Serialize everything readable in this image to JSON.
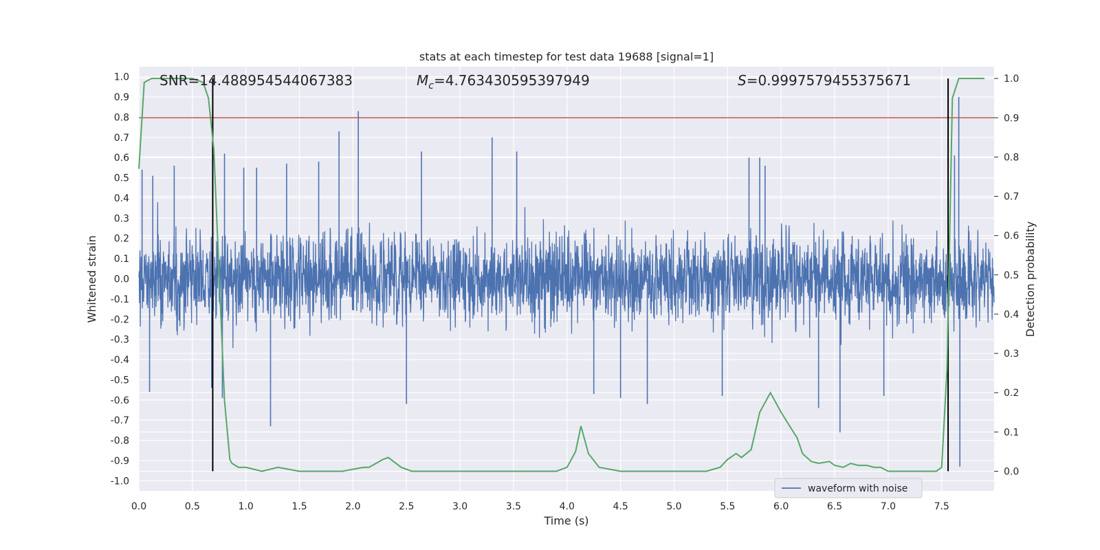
{
  "chart_data": {
    "type": "line",
    "title": "stats at each timestep for test data 19688 [signal=1]",
    "xlabel": "Time (s)",
    "ylabel": "Whitened strain",
    "y2label": "Detection probability",
    "xlim": [
      0.0,
      7.99
    ],
    "ylim": [
      -1.05,
      1.05
    ],
    "y2lim": [
      -0.05,
      1.03
    ],
    "xticks": [
      "0.0",
      "0.5",
      "1.0",
      "1.5",
      "2.0",
      "2.5",
      "3.0",
      "3.5",
      "4.0",
      "4.5",
      "5.0",
      "5.5",
      "6.0",
      "6.5",
      "7.0",
      "7.5"
    ],
    "yticks": [
      "1.0",
      "0.9",
      "0.8",
      "0.7",
      "0.6",
      "0.5",
      "0.4",
      "0.3",
      "0.2",
      "0.1",
      "0.0",
      "-0.1",
      "-0.2",
      "-0.3",
      "-0.4",
      "-0.5",
      "-0.6",
      "-0.7",
      "-0.8",
      "-0.9",
      "-1.0"
    ],
    "y2ticks": [
      "1.0",
      "0.9",
      "0.8",
      "0.7",
      "0.6",
      "0.5",
      "0.4",
      "0.3",
      "0.2",
      "0.1",
      "0.0"
    ],
    "grid": true,
    "legend_position": "lower-right",
    "annotations": {
      "snr": "SNR=14.488954544067383",
      "mc_symbol": "M",
      "mc_sub": "c",
      "mc_value": "=4.763430595397949",
      "s_symbol": "S",
      "s_value": "=0.9997579455375671"
    },
    "series": [
      {
        "name": "waveform with noise",
        "axis": "left",
        "color": "#4c72b0",
        "style": "dense-noise",
        "envelope": 0.4,
        "spikes": [
          {
            "x": 0.03,
            "y": 0.54
          },
          {
            "x": 0.1,
            "y": -0.56
          },
          {
            "x": 0.13,
            "y": 0.51
          },
          {
            "x": 0.33,
            "y": 0.56
          },
          {
            "x": 0.68,
            "y": -0.54
          },
          {
            "x": 0.78,
            "y": -0.59
          },
          {
            "x": 0.8,
            "y": 0.62
          },
          {
            "x": 0.98,
            "y": 0.55
          },
          {
            "x": 1.1,
            "y": 0.55
          },
          {
            "x": 1.23,
            "y": -0.73
          },
          {
            "x": 1.38,
            "y": 0.57
          },
          {
            "x": 1.68,
            "y": 0.58
          },
          {
            "x": 1.87,
            "y": 0.73
          },
          {
            "x": 2.05,
            "y": 0.83
          },
          {
            "x": 2.5,
            "y": -0.62
          },
          {
            "x": 2.64,
            "y": 0.63
          },
          {
            "x": 3.3,
            "y": 0.7
          },
          {
            "x": 3.53,
            "y": 0.63
          },
          {
            "x": 4.25,
            "y": -0.57
          },
          {
            "x": 4.5,
            "y": -0.59
          },
          {
            "x": 4.75,
            "y": -0.62
          },
          {
            "x": 5.45,
            "y": -0.58
          },
          {
            "x": 5.7,
            "y": 0.6
          },
          {
            "x": 5.85,
            "y": 0.56
          },
          {
            "x": 5.8,
            "y": 0.6
          },
          {
            "x": 6.35,
            "y": -0.64
          },
          {
            "x": 6.55,
            "y": -0.76
          },
          {
            "x": 6.96,
            "y": -0.58
          },
          {
            "x": 7.62,
            "y": 0.61
          },
          {
            "x": 7.66,
            "y": 0.9
          },
          {
            "x": 7.67,
            "y": -0.93
          }
        ]
      },
      {
        "name": "Detection probability",
        "axis": "right",
        "color": "#55a868",
        "x": [
          0.0,
          0.05,
          0.12,
          0.25,
          0.5,
          0.6,
          0.65,
          0.7,
          0.75,
          0.8,
          0.85,
          0.87,
          0.93,
          1.0,
          1.15,
          1.3,
          1.5,
          1.7,
          1.9,
          2.1,
          2.15,
          2.28,
          2.33,
          2.45,
          2.55,
          2.7,
          3.0,
          3.5,
          3.9,
          4.0,
          4.08,
          4.13,
          4.2,
          4.3,
          4.5,
          5.0,
          5.3,
          5.43,
          5.5,
          5.58,
          5.63,
          5.72,
          5.8,
          5.9,
          6.0,
          6.08,
          6.15,
          6.2,
          6.28,
          6.35,
          6.45,
          6.5,
          6.58,
          6.65,
          6.72,
          6.8,
          6.87,
          6.93,
          7.0,
          7.15,
          7.3,
          7.45,
          7.5,
          7.55,
          7.6,
          7.66,
          7.72,
          7.8,
          7.9
        ],
        "y": [
          0.77,
          0.99,
          1.0,
          1.0,
          1.0,
          0.99,
          0.95,
          0.82,
          0.5,
          0.18,
          0.03,
          0.02,
          0.01,
          0.01,
          0.0,
          0.01,
          0.0,
          0.0,
          0.0,
          0.01,
          0.01,
          0.03,
          0.035,
          0.01,
          0.0,
          0.0,
          0.0,
          0.0,
          0.0,
          0.01,
          0.05,
          0.115,
          0.045,
          0.01,
          0.0,
          0.0,
          0.0,
          0.01,
          0.03,
          0.045,
          0.035,
          0.055,
          0.15,
          0.2,
          0.15,
          0.115,
          0.085,
          0.045,
          0.025,
          0.02,
          0.025,
          0.015,
          0.01,
          0.02,
          0.015,
          0.015,
          0.01,
          0.01,
          0.0,
          0.0,
          0.0,
          0.0,
          0.01,
          0.26,
          0.95,
          1.0,
          1.0,
          1.0,
          1.0
        ]
      }
    ],
    "threshold": {
      "y2": 0.9,
      "color": "#c44e52"
    },
    "vertical_lines": [
      {
        "x": 0.69
      },
      {
        "x": 7.56
      }
    ]
  }
}
